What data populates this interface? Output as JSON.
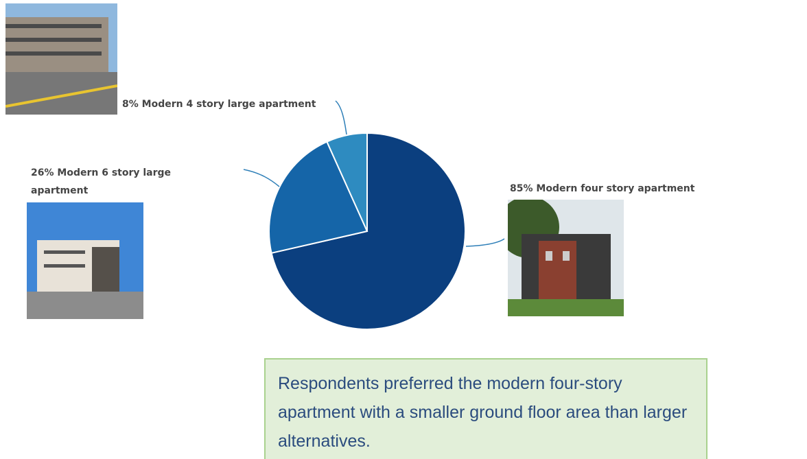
{
  "chart_data": {
    "type": "pie",
    "categories": [
      "Modern four story apartment",
      "Modern 6 story large apartment",
      "Modern 4 story large apartment"
    ],
    "values": [
      85,
      26,
      8
    ],
    "value_labels": [
      "85%",
      "26%",
      "8%"
    ],
    "colors": [
      "#0b3f7f",
      "#1565a8",
      "#2e8bc0"
    ],
    "note": "Respondents preferred the modern four-story apartment with a smaller ground floor area than larger alternatives."
  }
}
